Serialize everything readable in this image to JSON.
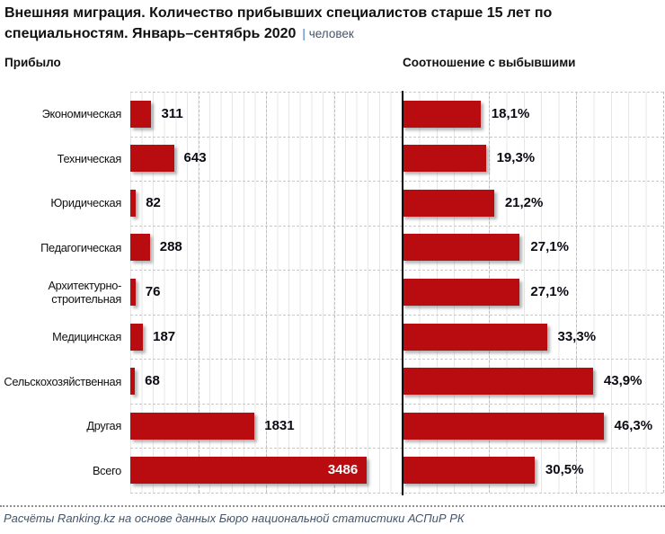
{
  "title": {
    "line1": "Внешняя миграция. Количество прибывших специалистов старше 15 лет по",
    "line2": "специальностям. Январь–сентябрь 2020",
    "unit_sep": "|",
    "unit": "человек"
  },
  "left_header": "Прибыло",
  "right_header": "Соотношение с выбывшими",
  "footer": "Расчёты Ranking.kz на основе данных Бюро национальной статистики АСПиР РК",
  "colors": {
    "bar": "#b90c10",
    "value_text": "#0b0b14",
    "inside_value_text": "#ffffff",
    "unit_text": "#44546a",
    "footer_text": "#44546a"
  },
  "chart_data": [
    {
      "type": "bar",
      "orientation": "horizontal",
      "title": "Прибыло",
      "categories": [
        "Экономическая",
        "Техническая",
        "Юридическая",
        "Педагогическая",
        "Архитектурно-\nстроительная",
        "Медицинская",
        "Сельскохозяйственная",
        "Другая",
        "Всего"
      ],
      "values": [
        311,
        643,
        82,
        288,
        76,
        187,
        68,
        1831,
        3486
      ],
      "value_labels": [
        "311",
        "643",
        "82",
        "288",
        "76",
        "187",
        "68",
        "1831",
        "3486"
      ],
      "xlim": [
        0,
        4000
      ],
      "grid": "major-dashed-minor-solid",
      "last_label_inside": true
    },
    {
      "type": "bar",
      "orientation": "horizontal",
      "title": "Соотношение с выбывшими",
      "categories": [
        "Экономическая",
        "Техническая",
        "Юридическая",
        "Педагогическая",
        "Архитектурно-\nстроительная",
        "Медицинская",
        "Сельскохозяйственная",
        "Другая",
        "Всего"
      ],
      "values": [
        18.1,
        19.3,
        21.2,
        27.1,
        27.1,
        33.3,
        43.9,
        46.3,
        30.5
      ],
      "value_labels": [
        "18,1%",
        "19,3%",
        "21,2%",
        "27,1%",
        "27,1%",
        "33,3%",
        "43,9%",
        "46,3%",
        "30,5%"
      ],
      "xlim": [
        0,
        60
      ],
      "grid": "major-dashed-minor-solid",
      "last_label_inside": false
    }
  ]
}
